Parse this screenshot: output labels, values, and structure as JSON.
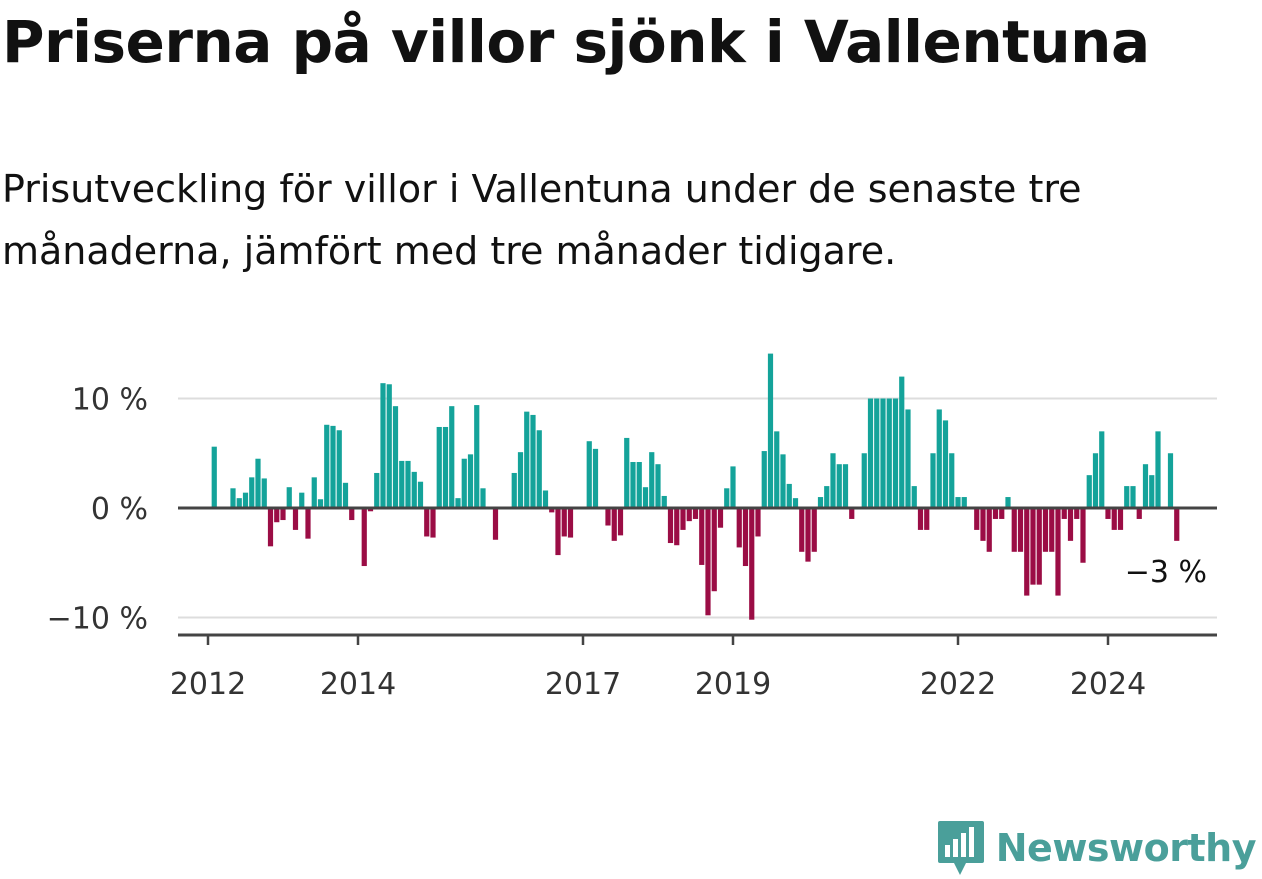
{
  "title": "Priserna på villor sjönk i Vallentuna",
  "subtitle": "Prisutveckling för villor i Vallentuna under de senaste tre månaderna, jämfört med tre månader tidigare.",
  "brand": {
    "name": "Newsworthy",
    "icon": "newsworthy-logo-icon",
    "color": "#4a9f9a"
  },
  "colors": {
    "positive": "#14a39a",
    "negative": "#9b0d45",
    "gridline": "#dddddd",
    "zeroline": "#444444",
    "text": "#333333"
  },
  "chart_data": {
    "type": "bar",
    "title": "Priserna på villor sjönk i Vallentuna",
    "ylabel": "",
    "xlabel": "",
    "ylim": [
      -11.5,
      15
    ],
    "yticks": [
      {
        "value": 10,
        "label": "10 %"
      },
      {
        "value": 0,
        "label": "0 %"
      },
      {
        "value": -10,
        "label": "−10 %"
      }
    ],
    "xticks": [
      {
        "value": 2012.0,
        "label": "2012"
      },
      {
        "value": 2014.0,
        "label": "2014"
      },
      {
        "value": 2017.0,
        "label": "2017"
      },
      {
        "value": 2019.0,
        "label": "2019"
      },
      {
        "value": 2022.0,
        "label": "2022"
      },
      {
        "value": 2024.0,
        "label": "2024"
      }
    ],
    "x_start": 2012.0833,
    "step": 0.0833333,
    "values": [
      5.6,
      0,
      0,
      1.8,
      0.9,
      1.4,
      2.8,
      4.5,
      2.7,
      -3.5,
      -1.3,
      -1.1,
      1.9,
      -2.0,
      1.4,
      -2.8,
      2.8,
      0.8,
      7.6,
      7.5,
      7.1,
      2.3,
      -1.1,
      0,
      -5.3,
      -0.3,
      3.2,
      11.4,
      11.3,
      9.3,
      4.3,
      4.3,
      3.3,
      2.4,
      -2.6,
      -2.7,
      7.4,
      7.4,
      9.3,
      0.9,
      4.5,
      4.9,
      9.4,
      1.8,
      0,
      -2.9,
      0,
      0,
      3.2,
      5.1,
      8.8,
      8.5,
      7.1,
      1.6,
      -0.4,
      -4.3,
      -2.6,
      -2.7,
      0,
      0,
      6.1,
      5.4,
      0,
      -1.6,
      -3.0,
      -2.5,
      6.4,
      4.2,
      4.2,
      1.9,
      5.1,
      4.0,
      1.1,
      -3.2,
      -3.4,
      -2.0,
      -1.2,
      -1.0,
      -5.2,
      -9.8,
      -7.6,
      -1.8,
      1.8,
      3.8,
      -3.6,
      -5.3,
      -10.2,
      -2.6,
      5.2,
      14.1,
      7.0,
      4.9,
      2.2,
      0.9,
      -4.0,
      -4.9,
      -4.0,
      1.0,
      2.0,
      5.0,
      4.0,
      4.0,
      -1.0,
      0,
      5.0,
      10.0,
      10.0,
      10.0,
      10.0,
      10.0,
      12.0,
      9.0,
      2.0,
      -2.0,
      -2.0,
      5.0,
      9.0,
      8.0,
      5.0,
      1.0,
      1.0,
      0,
      -2.0,
      -3.0,
      -4.0,
      -1.0,
      -1.0,
      1.0,
      -4.0,
      -4.0,
      -8.0,
      -7.0,
      -7.0,
      -4.0,
      -4.0,
      -8.0,
      -1.0,
      -3.0,
      -1.0,
      -5.0,
      3.0,
      5.0,
      7.0,
      -1.0,
      -2.0,
      -2.0,
      2.0,
      2.0,
      -1.0,
      4.0,
      3.0,
      7.0,
      0,
      5.0,
      -3.0
    ],
    "last_label": "−3 %"
  }
}
